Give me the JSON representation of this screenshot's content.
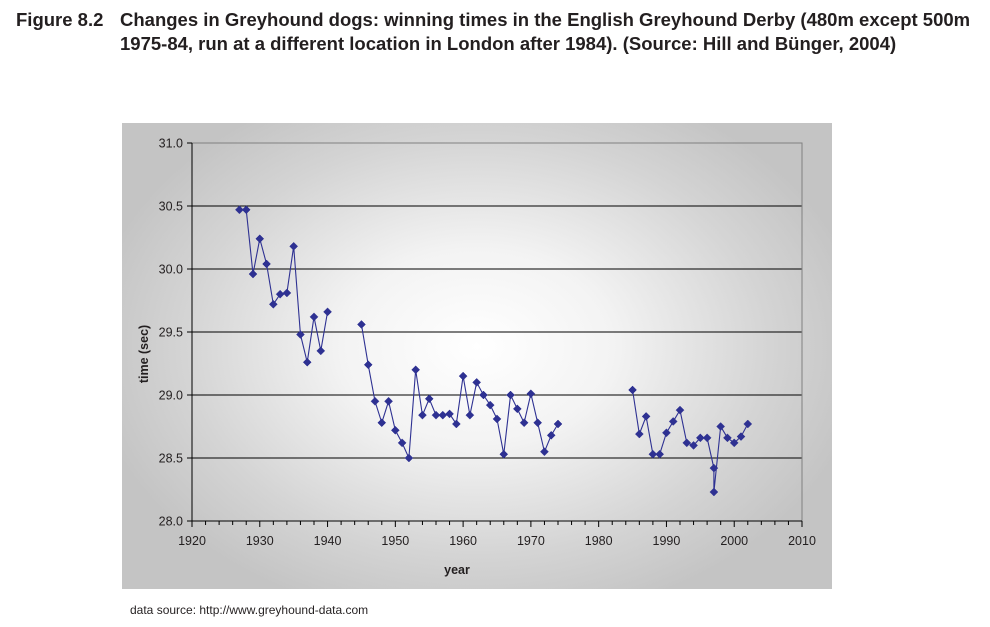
{
  "caption": {
    "label": "Figure 8.2",
    "title": "Changes in Greyhound dogs: winning times in the English Greyhound Derby (480m except 500m 1975-84, run at a different location in London after 1984). (Source: Hill and Bünger, 2004)"
  },
  "footer": {
    "source": "data source: http://www.greyhound-data.com"
  },
  "colors": {
    "series": "#2e3192",
    "grid": "#000000",
    "plot_border": "#808080"
  },
  "chart_data": {
    "type": "line",
    "title": "",
    "xlabel": "year",
    "ylabel": "time (sec)",
    "xlim": [
      1920,
      2010
    ],
    "ylim": [
      28.0,
      31.0
    ],
    "xticks": [
      "1920",
      "1930",
      "1940",
      "1950",
      "1960",
      "1970",
      "1980",
      "1990",
      "2000",
      "2010"
    ],
    "yticks": [
      "28.0",
      "28.5",
      "29.0",
      "29.5",
      "30.0",
      "30.5",
      "31.0"
    ],
    "grid": true,
    "marker": "diamond",
    "segments": [
      {
        "name": "1927-1940",
        "x": [
          1927,
          1928,
          1929,
          1930,
          1931,
          1932,
          1933,
          1934,
          1935,
          1936,
          1937,
          1938,
          1939,
          1940
        ],
        "y": [
          30.47,
          30.47,
          29.96,
          30.24,
          30.04,
          29.72,
          29.8,
          29.81,
          30.18,
          29.48,
          29.26,
          29.62,
          29.35,
          29.66
        ]
      },
      {
        "name": "1945-1974",
        "x": [
          1945,
          1946,
          1947,
          1948,
          1949,
          1950,
          1951,
          1952,
          1953,
          1954,
          1955,
          1956,
          1957,
          1958,
          1959,
          1960,
          1961,
          1962,
          1963,
          1964,
          1965,
          1966,
          1967,
          1968,
          1969,
          1970,
          1971,
          1972,
          1973,
          1974
        ],
        "y": [
          29.56,
          29.24,
          28.95,
          28.78,
          28.95,
          28.72,
          28.62,
          28.5,
          29.2,
          28.84,
          28.97,
          28.84,
          28.84,
          28.85,
          28.77,
          29.15,
          28.84,
          29.1,
          29.0,
          28.92,
          28.81,
          28.53,
          29.0,
          28.89,
          28.78,
          29.01,
          28.78,
          28.55,
          28.68,
          28.77
        ]
      },
      {
        "name": "1985-2002",
        "x": [
          1985,
          1986,
          1987,
          1988,
          1989,
          1990,
          1991,
          1992,
          1993,
          1994,
          1995,
          1996,
          1997,
          1997,
          1998,
          1999,
          2000,
          2001,
          2002
        ],
        "y": [
          29.04,
          28.69,
          28.83,
          28.53,
          28.53,
          28.7,
          28.79,
          28.88,
          28.62,
          28.6,
          28.66,
          28.66,
          28.42,
          28.23,
          28.75,
          28.66,
          28.62,
          28.67,
          28.77
        ]
      }
    ]
  }
}
